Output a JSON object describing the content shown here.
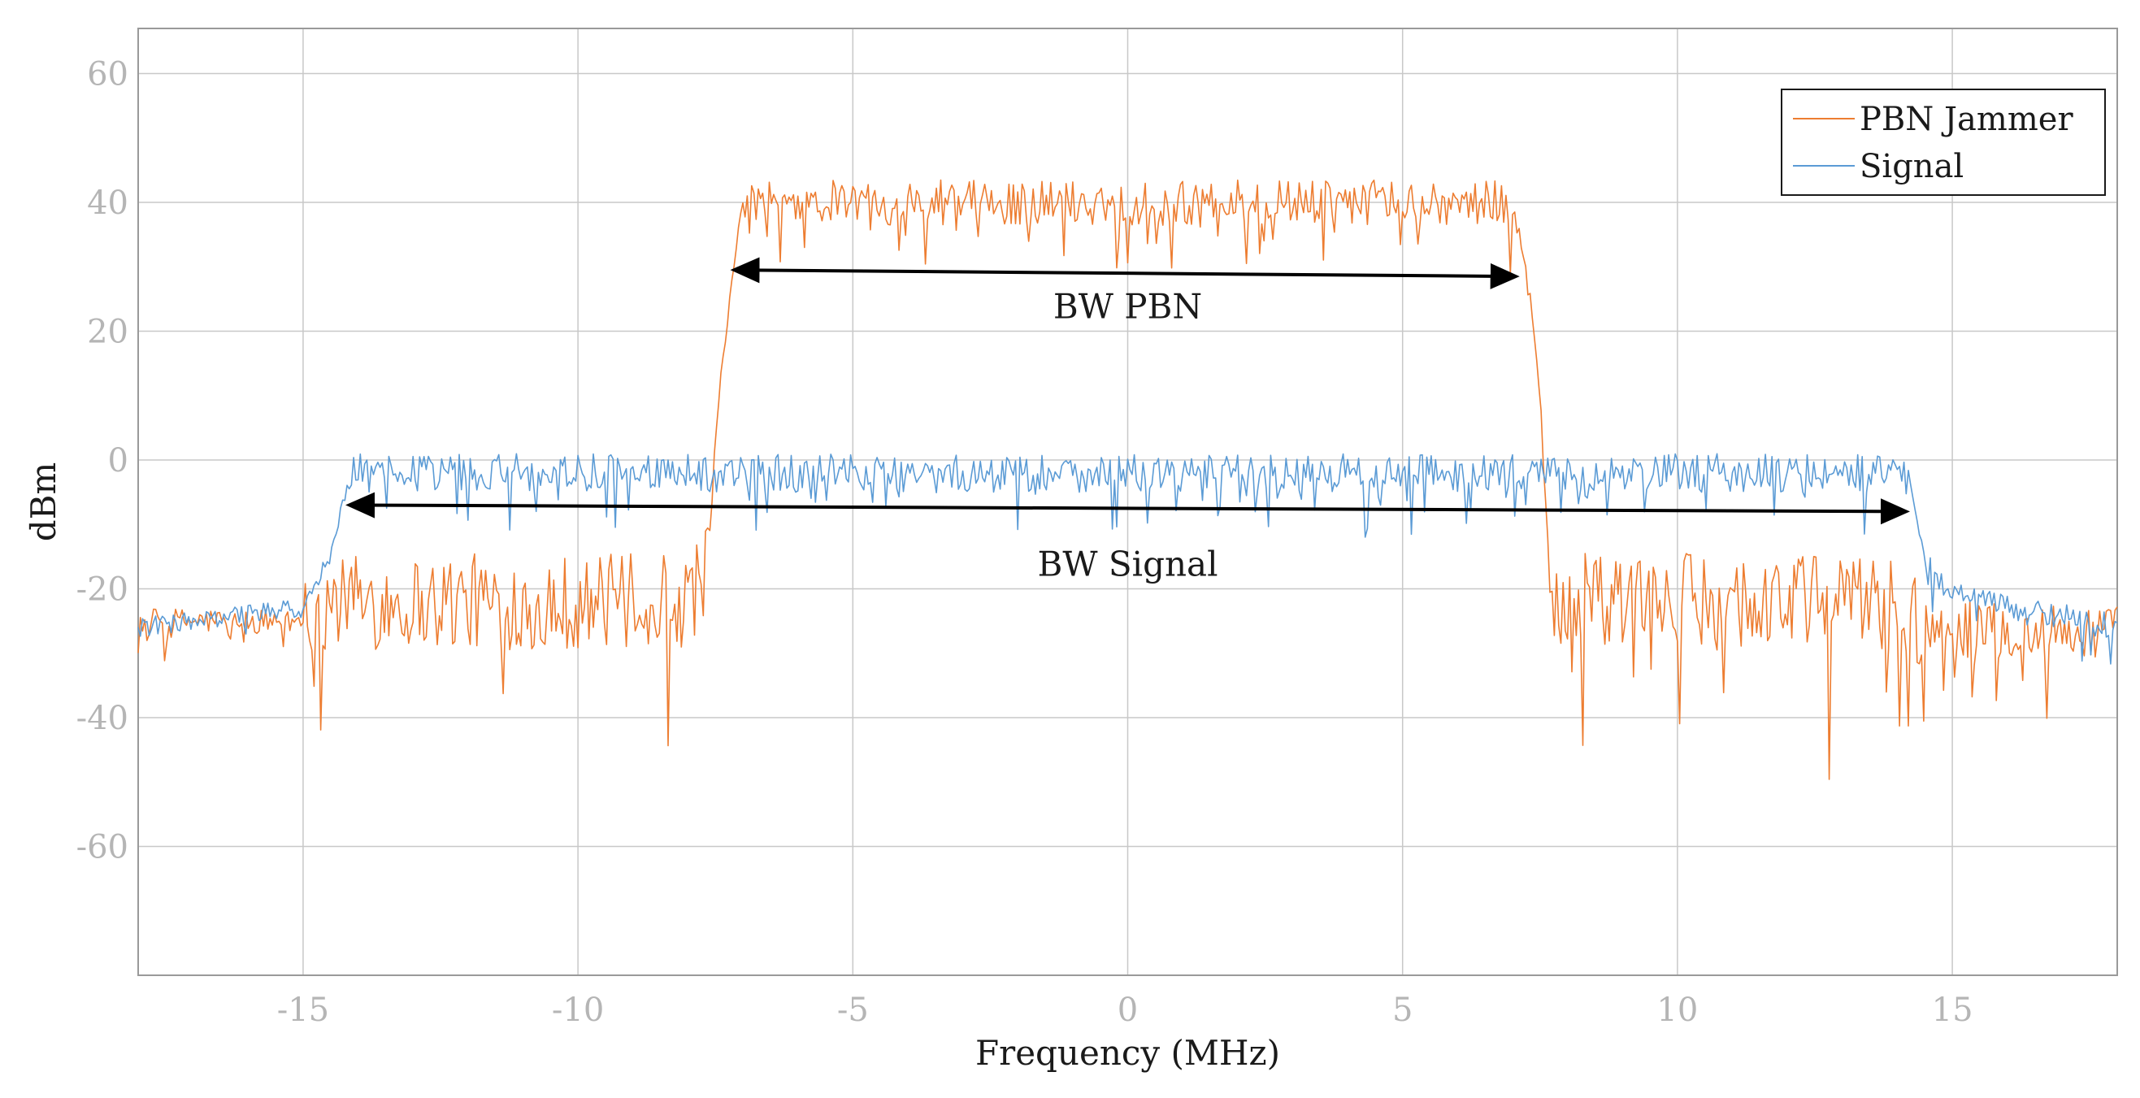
{
  "chart_data": {
    "type": "line",
    "title": "",
    "xlabel": "Frequency (MHz)",
    "ylabel": "dBm",
    "xlim": [
      -18,
      18
    ],
    "ylim": [
      -80,
      67
    ],
    "xticks": [
      -15,
      -10,
      -5,
      0,
      5,
      10,
      15
    ],
    "yticks": [
      60,
      40,
      20,
      0,
      -20,
      -40,
      -60
    ],
    "xtick_labels": [
      "-15",
      "-10",
      "-5",
      "0",
      "5",
      "10",
      "15"
    ],
    "ytick_labels": [
      "60",
      "40",
      "20",
      "0",
      "-20",
      "-40",
      "-60"
    ],
    "grid": true,
    "legend": {
      "position": "top-right",
      "entries": [
        "PBN Jammer",
        "Signal"
      ]
    },
    "series": [
      {
        "name": "PBN Jammer",
        "color": "#ed7d31",
        "description": "noisy trace sampled every 0.04 MHz",
        "x_range": [
          -18,
          18
        ],
        "envelope_x": [
          -18,
          -15,
          -14.4,
          -8,
          -7.6,
          -7.5,
          -7.2,
          -7.0,
          7.0,
          7.3,
          7.5,
          7.7,
          14.0,
          14.5,
          18
        ],
        "envelope_y": [
          -25,
          -25,
          -22,
          -22,
          -15,
          5,
          28,
          40,
          40,
          28,
          10,
          -22,
          -22,
          -26,
          -27
        ],
        "noise_amplitude": [
          {
            "x": [
              -18,
              -15
            ],
            "amp": 4
          },
          {
            "x": [
              -15,
              -7.6
            ],
            "amp": 15
          },
          {
            "x": [
              -7.0,
              7.0
            ],
            "amp": 7
          },
          {
            "x": [
              7.7,
              14.5
            ],
            "amp": 15
          },
          {
            "x": [
              14.5,
              18
            ],
            "amp": 9
          }
        ]
      },
      {
        "name": "Signal",
        "color": "#5b9bd5",
        "description": "noisy trace sampled every 0.04 MHz",
        "x_range": [
          -18,
          18
        ],
        "envelope_x": [
          -18,
          -15,
          -14.5,
          -14.2,
          -14.0,
          14.0,
          14.2,
          14.5,
          15,
          18
        ],
        "envelope_y": [
          -26,
          -23,
          -15,
          -3,
          -2,
          -2,
          -3,
          -15,
          -21,
          -26
        ],
        "noise_amplitude": [
          {
            "x": [
              -18,
              -14.5
            ],
            "amp": 3
          },
          {
            "x": [
              -14.2,
              14.2
            ],
            "amp": 6
          },
          {
            "x": [
              14.5,
              18
            ],
            "amp": 4
          }
        ]
      }
    ],
    "annotations": [
      {
        "text": "BW PBN",
        "arrow_x": [
          -7.2,
          7.1
        ],
        "arrow_y": [
          29.5,
          28.5
        ],
        "label_x": 0,
        "label_y": 22
      },
      {
        "text": "BW Signal",
        "arrow_x": [
          -14.2,
          14.2
        ],
        "arrow_y": [
          -7,
          -8
        ],
        "label_x": 0,
        "label_y": -18
      }
    ]
  }
}
